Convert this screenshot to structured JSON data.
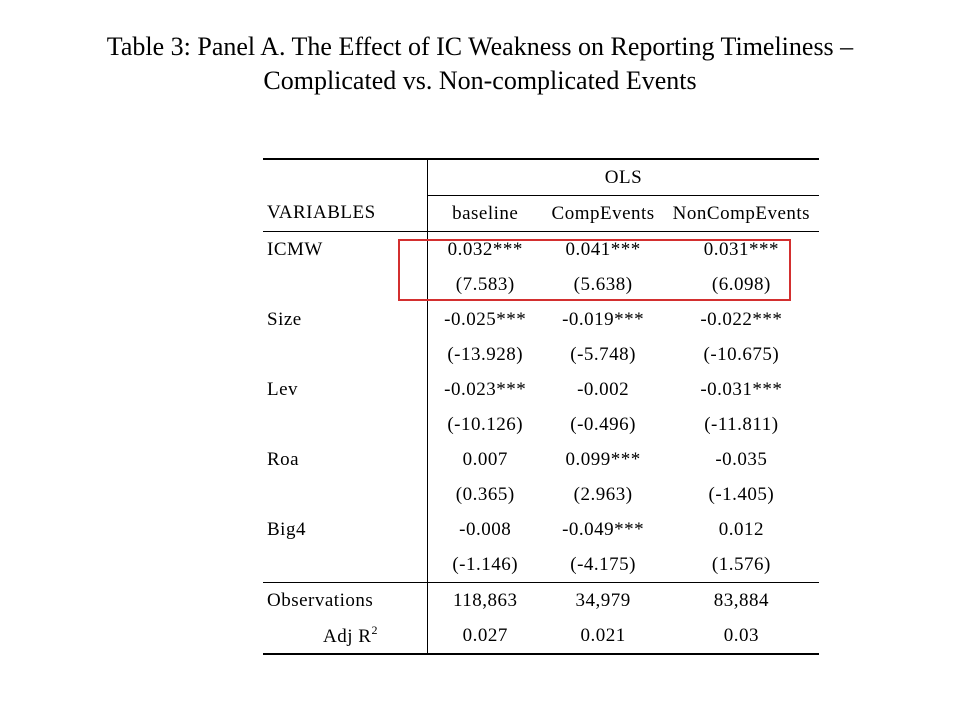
{
  "title": {
    "line1": "Table 3: Panel A. The Effect of IC Weakness on Reporting Timeliness –",
    "line2": "Complicated vs. Non-complicated Events"
  },
  "table": {
    "group_header": "OLS",
    "variables_header": "VARIABLES",
    "columns": [
      "baseline",
      "CompEvents",
      "NonCompEvents"
    ],
    "rows": [
      {
        "name": "ICMW",
        "coef": [
          "0.032***",
          "0.041***",
          "0.031***"
        ],
        "t": [
          "(7.583)",
          "(5.638)",
          "(6.098)"
        ]
      },
      {
        "name": "Size",
        "coef": [
          "-0.025***",
          "-0.019***",
          "-0.022***"
        ],
        "t": [
          "(-13.928)",
          "(-5.748)",
          "(-10.675)"
        ]
      },
      {
        "name": "Lev",
        "coef": [
          "-0.023***",
          "-0.002",
          "-0.031***"
        ],
        "t": [
          "(-10.126)",
          "(-0.496)",
          "(-11.811)"
        ]
      },
      {
        "name": "Roa",
        "coef": [
          "0.007",
          "0.099***",
          "-0.035"
        ],
        "t": [
          "(0.365)",
          "(2.963)",
          "(-1.405)"
        ]
      },
      {
        "name": "Big4",
        "coef": [
          "-0.008",
          "-0.049***",
          "0.012"
        ],
        "t": [
          "(-1.146)",
          "(-4.175)",
          "(1.576)"
        ]
      }
    ],
    "observations": {
      "label": "Observations",
      "values": [
        "118,863",
        "34,979",
        "83,884"
      ]
    },
    "adj_r2": {
      "label": "Adj R",
      "superscript": "2",
      "values": [
        "0.027",
        "0.021",
        "0.03"
      ]
    },
    "highlight_color": "#d32f2f"
  }
}
